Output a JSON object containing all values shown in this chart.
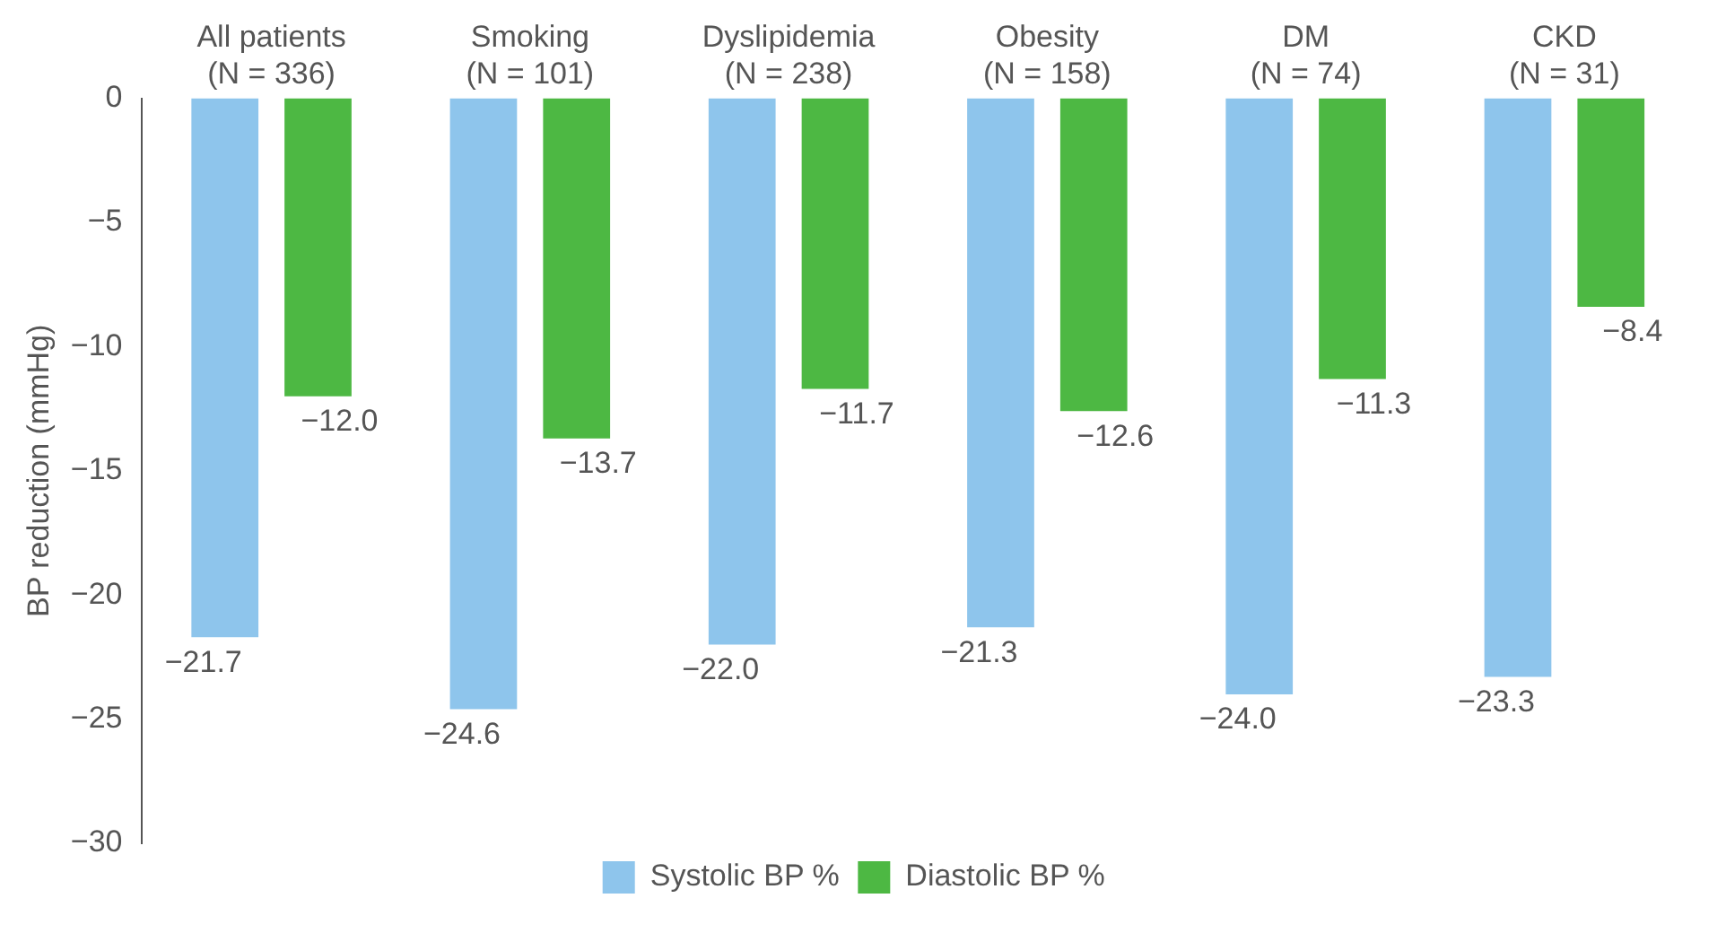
{
  "chart_data": {
    "type": "bar",
    "ylabel": "BP reduction (mmHg)",
    "categories": [
      "All patients\n(N = 336)",
      "Smoking\n(N = 101)",
      "Dyslipidemia\n(N = 238)",
      "Obesity\n(N = 158)",
      "DM\n(N = 74)",
      "CKD\n(N = 31)"
    ],
    "series": [
      {
        "name": "Systolic BP %",
        "color": "#8ec5ec",
        "values": [
          -21.7,
          -24.6,
          -22.0,
          -21.3,
          -24.0,
          -23.3
        ],
        "value_labels": [
          "−21.7",
          "−24.6",
          "−22.0",
          "−21.3",
          "−24.0",
          "−23.3"
        ]
      },
      {
        "name": "Diastolic BP %",
        "color": "#4db843",
        "values": [
          -12.0,
          -13.7,
          -11.7,
          -12.6,
          -11.3,
          -8.4
        ],
        "value_labels": [
          "−12.0",
          "−13.7",
          "−11.7",
          "−12.6",
          "−11.3",
          "−8.4"
        ]
      }
    ],
    "ylim": [
      -30,
      0
    ],
    "yticks": [
      {
        "value": -30,
        "label": "−30"
      },
      {
        "value": -25,
        "label": "−25"
      },
      {
        "value": -20,
        "label": "−20"
      },
      {
        "value": -15,
        "label": "−15"
      },
      {
        "value": -10,
        "label": "−10"
      },
      {
        "value": -5,
        "label": "−5"
      },
      0
    ],
    "grid": false,
    "legend": "bottom"
  }
}
